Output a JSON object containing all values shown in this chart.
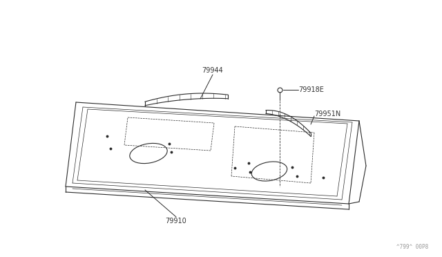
{
  "bg_color": "#ffffff",
  "line_color": "#2a2a2a",
  "label_color": "#333333",
  "watermark_color": "#999999",
  "watermark_text": "^799^ 00P8",
  "figsize": [
    6.4,
    3.72
  ],
  "dpi": 100,
  "font_size": 7.0
}
